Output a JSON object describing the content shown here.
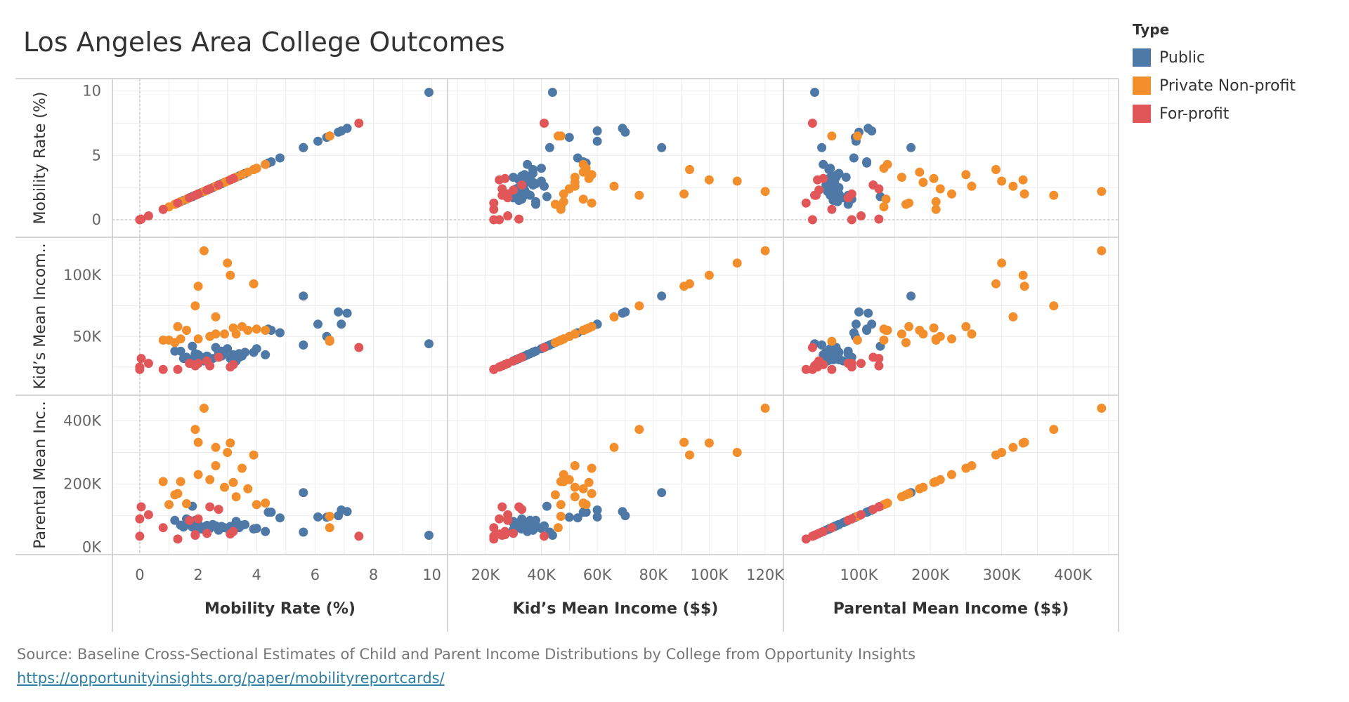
{
  "title": "Los Angeles Area College Outcomes",
  "legend": {
    "title": "Type",
    "items": [
      {
        "label": "Public",
        "color": "#4e79a7"
      },
      {
        "label": "Private Non-profit",
        "color": "#f28e2b"
      },
      {
        "label": "For-profit",
        "color": "#e15759"
      }
    ]
  },
  "source": {
    "text": "Source: Baseline Cross-Sectional Estimates of Child and Parent Income Distributions by College from Opportunity Insights",
    "link": "https://opportunityinsights.org/paper/mobilityreportcards/"
  },
  "chart_data": {
    "type": "scatter",
    "layout": "scatterplot-matrix",
    "grid": true,
    "legend_position": "top-right",
    "variables": [
      {
        "key": "mobility",
        "label": "Mobility Rate (%)",
        "axis_title": "Mobility Rate (%)",
        "range": [
          -0.6,
          10.2
        ],
        "ticks": [
          0,
          2,
          4,
          6,
          8,
          10
        ],
        "tick_labels": [
          "0",
          "2",
          "4",
          "6",
          "8",
          "10"
        ],
        "row_ticks": [
          0,
          5,
          10
        ],
        "row_tick_labels": [
          "0",
          "5",
          "10"
        ]
      },
      {
        "key": "kid_income",
        "label": "Kid's Mean Income ($$)",
        "axis_title": "Kid’s Mean Income ($$)",
        "row_label": "Kid’s Mean Incom..",
        "range": [
          10000,
          123000
        ],
        "ticks": [
          20000,
          40000,
          60000,
          80000,
          100000,
          120000
        ],
        "tick_labels": [
          "20K",
          "40K",
          "60K",
          "80K",
          "100K",
          "120K"
        ],
        "row_ticks": [
          50000,
          100000
        ],
        "row_tick_labels": [
          "50K",
          "100K"
        ]
      },
      {
        "key": "parent_income",
        "label": "Parental Mean Income ($$)",
        "axis_title": "Parental Mean Income ($$)",
        "row_label": "Parental Mean Inc..",
        "range": [
          8000,
          450000
        ],
        "ticks": [
          100000,
          200000,
          300000,
          400000
        ],
        "tick_labels": [
          "100K",
          "200K",
          "300K",
          "400K"
        ],
        "row_ticks": [
          0,
          200000,
          400000
        ],
        "row_tick_labels": [
          "0K",
          "200K",
          "400K"
        ]
      }
    ],
    "series": [
      {
        "name": "Public",
        "color": "#4e79a7",
        "points": [
          [
            9.9,
            44000,
            38000
          ],
          [
            7.1,
            69000,
            113000
          ],
          [
            6.9,
            60000,
            118000
          ],
          [
            6.8,
            70000,
            100000
          ],
          [
            6.4,
            50000,
            95000
          ],
          [
            6.1,
            60000,
            96000
          ],
          [
            5.6,
            83000,
            173000
          ],
          [
            5.6,
            43000,
            48000
          ],
          [
            4.8,
            53000,
            93000
          ],
          [
            4.5,
            55000,
            111000
          ],
          [
            4.4,
            56000,
            111000
          ],
          [
            4.3,
            35000,
            50000
          ],
          [
            4.0,
            40000,
            60000
          ],
          [
            3.9,
            37000,
            58000
          ],
          [
            3.6,
            37000,
            72000
          ],
          [
            3.5,
            34000,
            70000
          ],
          [
            3.4,
            36000,
            66000
          ],
          [
            3.3,
            33000,
            68000
          ],
          [
            3.2,
            35000,
            58000
          ],
          [
            3.1,
            32000,
            66000
          ],
          [
            3.0,
            40000,
            60000
          ],
          [
            2.9,
            37000,
            62000
          ],
          [
            2.8,
            34000,
            66000
          ],
          [
            2.7,
            37000,
            54000
          ],
          [
            2.6,
            41000,
            68000
          ],
          [
            2.5,
            32000,
            72000
          ],
          [
            2.4,
            31000,
            60000
          ],
          [
            2.3,
            34000,
            69000
          ],
          [
            2.2,
            32000,
            64000
          ],
          [
            2.1,
            33000,
            58000
          ],
          [
            2.0,
            31000,
            72000
          ],
          [
            1.9,
            36000,
            85000
          ],
          [
            1.8,
            31000,
            64000
          ],
          [
            1.7,
            30000,
            78000
          ],
          [
            1.6,
            33000,
            90000
          ],
          [
            1.5,
            32000,
            64000
          ],
          [
            1.4,
            38000,
            70000
          ],
          [
            1.2,
            38000,
            85000
          ],
          [
            2.0,
            35000,
            60000
          ],
          [
            1.9,
            34000,
            60000
          ],
          [
            2.2,
            30000,
            56000
          ],
          [
            2.8,
            38000,
            62000
          ],
          [
            3.4,
            33000,
            62000
          ],
          [
            3.3,
            30000,
            82000
          ],
          [
            1.8,
            42000,
            130000
          ]
        ]
      },
      {
        "name": "Private Non-profit",
        "color": "#f28e2b",
        "points": [
          [
            2.2,
            120000,
            440000
          ],
          [
            3.0,
            110000,
            300000
          ],
          [
            3.1,
            100000,
            330000
          ],
          [
            3.9,
            93000,
            292000
          ],
          [
            2.0,
            91000,
            332000
          ],
          [
            1.9,
            75000,
            373000
          ],
          [
            2.6,
            66000,
            316000
          ],
          [
            3.2,
            57000,
            205000
          ],
          [
            3.5,
            58000,
            250000
          ],
          [
            1.3,
            58000,
            170000
          ],
          [
            2.0,
            48000,
            230000
          ],
          [
            3.7,
            55000,
            185000
          ],
          [
            1.6,
            55000,
            138000
          ],
          [
            4.3,
            55000,
            140000
          ],
          [
            2.4,
            50000,
            214000
          ],
          [
            1.4,
            48000,
            208000
          ],
          [
            2.9,
            52000,
            190000
          ],
          [
            3.3,
            52000,
            160000
          ],
          [
            4.0,
            56000,
            135000
          ],
          [
            1.0,
            47000,
            135000
          ],
          [
            6.5,
            46000,
            62000
          ],
          [
            6.5,
            47000,
            98000
          ],
          [
            0.8,
            47000,
            208000
          ],
          [
            1.2,
            45000,
            166000
          ],
          [
            2.6,
            52000,
            258000
          ]
        ]
      },
      {
        "name": "For-profit",
        "color": "#e15759",
        "points": [
          [
            7.5,
            41000,
            35000
          ],
          [
            0.0,
            23000,
            35000
          ],
          [
            0.0,
            25000,
            90000
          ],
          [
            0.05,
            32000,
            128000
          ],
          [
            0.3,
            28000,
            103000
          ],
          [
            0.8,
            23000,
            62000
          ],
          [
            1.3,
            23000,
            26000
          ],
          [
            1.7,
            28000,
            85000
          ],
          [
            1.9,
            27000,
            40000
          ],
          [
            2.3,
            30000,
            44000
          ],
          [
            2.4,
            26000,
            128000
          ],
          [
            2.7,
            33000,
            120000
          ],
          [
            3.2,
            27000,
            50000
          ],
          [
            1.9,
            26000,
            38000
          ],
          [
            2.0,
            28000,
            90000
          ],
          [
            3.1,
            25000,
            42000
          ]
        ]
      }
    ]
  }
}
